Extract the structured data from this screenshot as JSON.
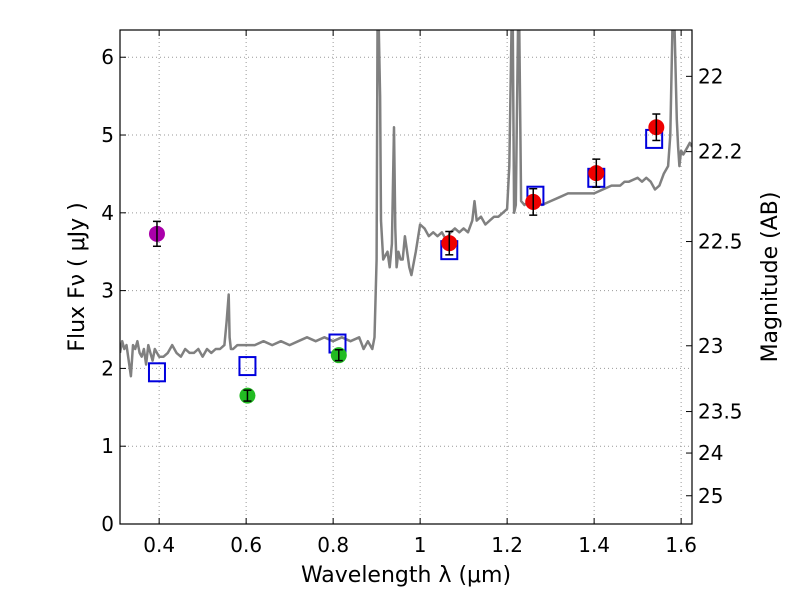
{
  "chart_data": {
    "type": "scatter",
    "xlabel": "Wavelength  λ (μm)",
    "ylabel": "Flux  Fν  ( μJy )",
    "y2label": "Magnitude (AB)",
    "xlim": [
      0.31,
      1.625
    ],
    "ylim": [
      0,
      6.35
    ],
    "grid": true,
    "xticks": [
      0.4,
      0.6,
      0.8,
      1.0,
      1.2,
      1.4,
      1.6
    ],
    "xtick_labels": [
      "0.4",
      "0.6",
      "0.8",
      "1",
      "1.2",
      "1.4",
      "1.6"
    ],
    "yticks": [
      0,
      1,
      2,
      3,
      4,
      5,
      6
    ],
    "ytick_labels": [
      "0",
      "1",
      "2",
      "3",
      "4",
      "5",
      "6"
    ],
    "mag_ticks": [
      22,
      22.2,
      22.5,
      23,
      23.5,
      24,
      25
    ],
    "mag_tick_labels": [
      "22",
      "22.2",
      "22.5",
      "23",
      "23.5",
      "24",
      "25"
    ],
    "colors": {
      "spectrum": "#808080",
      "model": "#0000dd",
      "purple": "#aa00aa",
      "green": "#22bb22",
      "red": "#ee0000",
      "errorbar": "#000000",
      "grid": "#999999"
    },
    "series": [
      {
        "name": "model spectrum",
        "kind": "line",
        "x": [
          0.31,
          0.315,
          0.32,
          0.325,
          0.33,
          0.335,
          0.34,
          0.345,
          0.35,
          0.355,
          0.36,
          0.365,
          0.37,
          0.375,
          0.38,
          0.385,
          0.39,
          0.4,
          0.41,
          0.42,
          0.43,
          0.44,
          0.45,
          0.46,
          0.47,
          0.48,
          0.49,
          0.5,
          0.51,
          0.52,
          0.53,
          0.54,
          0.55,
          0.555,
          0.56,
          0.562,
          0.565,
          0.57,
          0.58,
          0.6,
          0.62,
          0.64,
          0.66,
          0.68,
          0.7,
          0.72,
          0.74,
          0.76,
          0.78,
          0.8,
          0.82,
          0.84,
          0.86,
          0.87,
          0.88,
          0.89,
          0.895,
          0.9,
          0.902,
          0.905,
          0.908,
          0.91,
          0.915,
          0.92,
          0.925,
          0.93,
          0.935,
          0.94,
          0.943,
          0.946,
          0.95,
          0.955,
          0.96,
          0.965,
          0.97,
          0.975,
          0.98,
          0.99,
          1.0,
          1.01,
          1.02,
          1.03,
          1.04,
          1.05,
          1.06,
          1.07,
          1.08,
          1.09,
          1.1,
          1.11,
          1.12,
          1.125,
          1.13,
          1.14,
          1.15,
          1.16,
          1.17,
          1.18,
          1.19,
          1.2,
          1.205,
          1.21,
          1.213,
          1.216,
          1.22,
          1.225,
          1.228,
          1.232,
          1.24,
          1.25,
          1.26,
          1.27,
          1.28,
          1.3,
          1.32,
          1.34,
          1.36,
          1.38,
          1.4,
          1.42,
          1.44,
          1.46,
          1.47,
          1.48,
          1.5,
          1.51,
          1.52,
          1.53,
          1.54,
          1.55,
          1.56,
          1.57,
          1.575,
          1.58,
          1.585,
          1.59,
          1.593,
          1.596,
          1.6,
          1.605,
          1.61,
          1.615,
          1.62,
          1.625
        ],
        "y": [
          2.2,
          2.35,
          2.25,
          2.3,
          2.1,
          1.9,
          2.3,
          2.25,
          2.35,
          2.2,
          2.15,
          2.25,
          2.05,
          2.3,
          2.2,
          2.1,
          2.25,
          2.15,
          2.15,
          2.2,
          2.3,
          2.2,
          2.15,
          2.25,
          2.2,
          2.2,
          2.25,
          2.15,
          2.25,
          2.2,
          2.25,
          2.25,
          2.3,
          2.6,
          2.95,
          2.4,
          2.25,
          2.25,
          2.3,
          2.3,
          2.3,
          2.35,
          2.3,
          2.35,
          2.3,
          2.35,
          2.4,
          2.35,
          2.4,
          2.35,
          2.4,
          2.35,
          2.4,
          2.25,
          2.35,
          2.25,
          2.4,
          3.4,
          6.35,
          6.35,
          5.5,
          3.9,
          3.4,
          3.45,
          3.5,
          3.3,
          3.6,
          5.1,
          3.8,
          3.3,
          3.5,
          3.4,
          3.4,
          3.7,
          3.5,
          3.3,
          3.2,
          3.5,
          3.85,
          3.8,
          3.7,
          3.75,
          3.7,
          3.75,
          3.65,
          3.75,
          3.8,
          3.75,
          3.8,
          3.75,
          3.9,
          4.15,
          3.9,
          3.95,
          3.85,
          3.9,
          3.95,
          3.95,
          4.0,
          4.05,
          4.6,
          6.35,
          6.35,
          4.0,
          4.1,
          6.35,
          6.35,
          4.15,
          4.1,
          4.15,
          4.2,
          4.15,
          4.1,
          4.15,
          4.2,
          4.25,
          4.25,
          4.25,
          4.25,
          4.3,
          4.35,
          4.35,
          4.4,
          4.4,
          4.45,
          4.4,
          4.45,
          4.4,
          4.3,
          4.35,
          4.5,
          4.6,
          5.0,
          6.35,
          6.35,
          5.2,
          4.85,
          4.6,
          4.8,
          4.75,
          4.8,
          4.85,
          4.9,
          4.85
        ]
      },
      {
        "name": "model synthetic photometry",
        "kind": "open-square",
        "x": [
          0.395,
          0.603,
          0.81,
          1.067,
          1.265,
          1.405,
          1.538
        ],
        "y": [
          1.95,
          2.03,
          2.32,
          3.52,
          4.22,
          4.45,
          4.95
        ]
      },
      {
        "name": "observed purple",
        "kind": "point",
        "color": "purple",
        "x": [
          0.395
        ],
        "y": [
          3.73
        ],
        "yerr": [
          0.16
        ]
      },
      {
        "name": "observed green",
        "kind": "point",
        "color": "green",
        "x": [
          0.603,
          0.813
        ],
        "y": [
          1.65,
          2.17
        ],
        "yerr": [
          0.07,
          0.07
        ]
      },
      {
        "name": "observed red",
        "kind": "point",
        "color": "red",
        "x": [
          1.067,
          1.26,
          1.405,
          1.543
        ],
        "y": [
          3.61,
          4.14,
          4.51,
          5.1
        ],
        "yerr": [
          0.15,
          0.17,
          0.18,
          0.17
        ]
      }
    ]
  }
}
